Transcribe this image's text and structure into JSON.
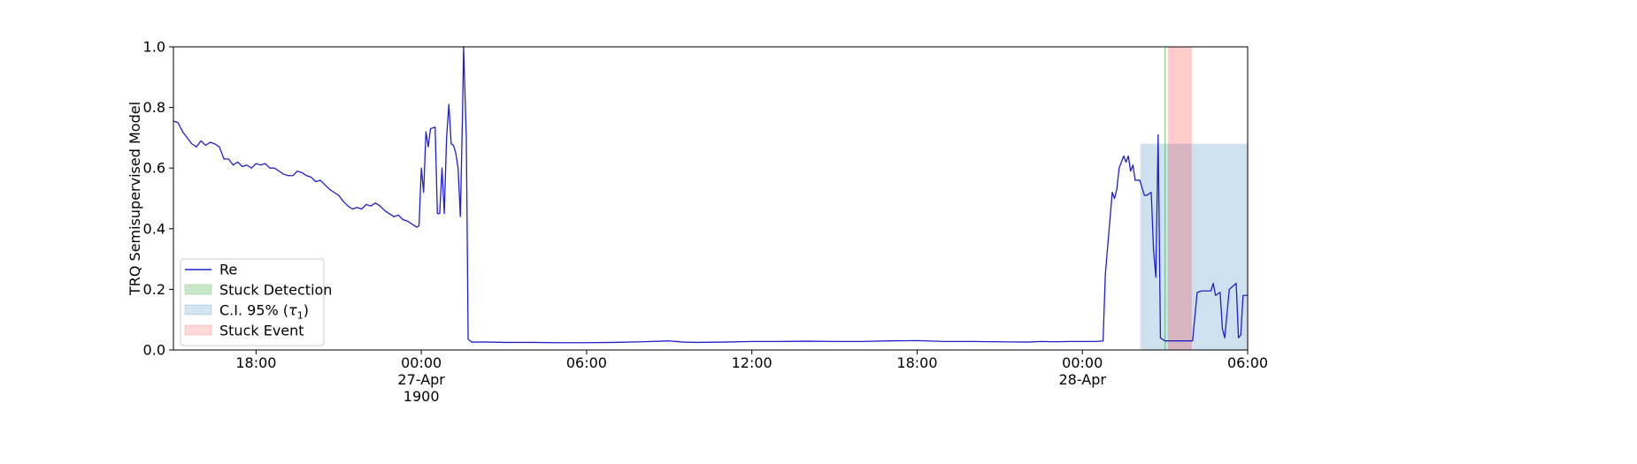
{
  "chart_data": {
    "type": "line",
    "title": "",
    "xlabel": "",
    "ylabel": "TRQ Semisupervised Model",
    "x_axis": {
      "start": "1900-04-26T15:00",
      "end": "1900-04-28T06:00",
      "ticks": [
        {
          "t": "1900-04-26T18:00",
          "label": "18:00",
          "sublabel": ""
        },
        {
          "t": "1900-04-27T00:00",
          "label": "00:00",
          "sublabel": "27-Apr",
          "sublabel2": "1900"
        },
        {
          "t": "1900-04-27T06:00",
          "label": "06:00",
          "sublabel": ""
        },
        {
          "t": "1900-04-27T12:00",
          "label": "12:00",
          "sublabel": ""
        },
        {
          "t": "1900-04-27T18:00",
          "label": "18:00",
          "sublabel": ""
        },
        {
          "t": "1900-04-28T00:00",
          "label": "00:00",
          "sublabel": "28-Apr"
        },
        {
          "t": "1900-04-28T06:00",
          "label": "06:00",
          "sublabel": ""
        }
      ]
    },
    "ylim": [
      0.0,
      1.0
    ],
    "y_ticks": [
      {
        "v": 0.0,
        "label": "0.0"
      },
      {
        "v": 0.2,
        "label": "0.2"
      },
      {
        "v": 0.4,
        "label": "0.4"
      },
      {
        "v": 0.6,
        "label": "0.6"
      },
      {
        "v": 0.8,
        "label": "0.8"
      },
      {
        "v": 1.0,
        "label": "1.0"
      }
    ],
    "grid": false,
    "legend_position": "lower-left",
    "legend": [
      {
        "label": "Re",
        "kind": "line",
        "color": "#2020c8"
      },
      {
        "label": "Stuck Detection",
        "kind": "patch",
        "color": "#2ca02c",
        "alpha": 0.25
      },
      {
        "label": "C.I. 95% (",
        "label_math": "τ",
        "label_sub": "1",
        "label_end": ")",
        "kind": "patch",
        "color": "#1f77b4",
        "alpha": 0.2
      },
      {
        "label": "Stuck Event",
        "kind": "patch",
        "color": "#ff0000",
        "alpha": 0.15
      }
    ],
    "regions": [
      {
        "name": "C.I. 95%",
        "x0": "1900-04-28T02:06",
        "x1": "1900-04-28T06:00",
        "y0": 0.0,
        "y1": 0.68,
        "color": "#1f77b4",
        "alpha": 0.22
      },
      {
        "name": "Stuck Event",
        "x0": "1900-04-28T03:06",
        "x1": "1900-04-28T03:58",
        "y0": 0.0,
        "y1": 1.0,
        "color": "#ff0000",
        "alpha": 0.2
      },
      {
        "name": "Stuck Detection",
        "x0": "1900-04-28T02:59",
        "x1": "1900-04-28T03:01",
        "y0": 0.0,
        "y1": 1.0,
        "color": "#2ca02c",
        "alpha": 0.6
      }
    ],
    "series": [
      {
        "name": "Re",
        "color": "#2020c8",
        "points": [
          [
            "1900-04-26T15:00",
            0.755
          ],
          [
            "1900-04-26T15:10",
            0.75
          ],
          [
            "1900-04-26T15:20",
            0.72
          ],
          [
            "1900-04-26T15:30",
            0.7
          ],
          [
            "1900-04-26T15:40",
            0.68
          ],
          [
            "1900-04-26T15:50",
            0.67
          ],
          [
            "1900-04-26T16:00",
            0.69
          ],
          [
            "1900-04-26T16:10",
            0.675
          ],
          [
            "1900-04-26T16:20",
            0.685
          ],
          [
            "1900-04-26T16:30",
            0.68
          ],
          [
            "1900-04-26T16:40",
            0.67
          ],
          [
            "1900-04-26T16:50",
            0.63
          ],
          [
            "1900-04-26T17:00",
            0.63
          ],
          [
            "1900-04-26T17:10",
            0.61
          ],
          [
            "1900-04-26T17:20",
            0.62
          ],
          [
            "1900-04-26T17:30",
            0.605
          ],
          [
            "1900-04-26T17:40",
            0.61
          ],
          [
            "1900-04-26T17:50",
            0.6
          ],
          [
            "1900-04-26T18:00",
            0.615
          ],
          [
            "1900-04-26T18:10",
            0.61
          ],
          [
            "1900-04-26T18:20",
            0.615
          ],
          [
            "1900-04-26T18:30",
            0.6
          ],
          [
            "1900-04-26T18:40",
            0.6
          ],
          [
            "1900-04-26T18:50",
            0.59
          ],
          [
            "1900-04-26T19:00",
            0.58
          ],
          [
            "1900-04-26T19:10",
            0.575
          ],
          [
            "1900-04-26T19:20",
            0.575
          ],
          [
            "1900-04-26T19:30",
            0.59
          ],
          [
            "1900-04-26T19:40",
            0.585
          ],
          [
            "1900-04-26T19:50",
            0.575
          ],
          [
            "1900-04-26T20:00",
            0.57
          ],
          [
            "1900-04-26T20:10",
            0.555
          ],
          [
            "1900-04-26T20:20",
            0.56
          ],
          [
            "1900-04-26T20:30",
            0.545
          ],
          [
            "1900-04-26T20:40",
            0.53
          ],
          [
            "1900-04-26T20:50",
            0.52
          ],
          [
            "1900-04-26T21:00",
            0.51
          ],
          [
            "1900-04-26T21:10",
            0.49
          ],
          [
            "1900-04-26T21:20",
            0.475
          ],
          [
            "1900-04-26T21:30",
            0.465
          ],
          [
            "1900-04-26T21:40",
            0.47
          ],
          [
            "1900-04-26T21:50",
            0.465
          ],
          [
            "1900-04-26T22:00",
            0.48
          ],
          [
            "1900-04-26T22:10",
            0.475
          ],
          [
            "1900-04-26T22:20",
            0.485
          ],
          [
            "1900-04-26T22:30",
            0.475
          ],
          [
            "1900-04-26T22:40",
            0.46
          ],
          [
            "1900-04-26T22:50",
            0.45
          ],
          [
            "1900-04-26T23:00",
            0.44
          ],
          [
            "1900-04-26T23:10",
            0.445
          ],
          [
            "1900-04-26T23:20",
            0.43
          ],
          [
            "1900-04-26T23:30",
            0.425
          ],
          [
            "1900-04-26T23:40",
            0.415
          ],
          [
            "1900-04-26T23:50",
            0.405
          ],
          [
            "1900-04-26T23:55",
            0.41
          ],
          [
            "1900-04-27T00:00",
            0.6
          ],
          [
            "1900-04-27T00:05",
            0.52
          ],
          [
            "1900-04-27T00:10",
            0.72
          ],
          [
            "1900-04-27T00:15",
            0.67
          ],
          [
            "1900-04-27T00:20",
            0.73
          ],
          [
            "1900-04-27T00:30",
            0.735
          ],
          [
            "1900-04-27T00:35",
            0.45
          ],
          [
            "1900-04-27T00:40",
            0.45
          ],
          [
            "1900-04-27T00:45",
            0.6
          ],
          [
            "1900-04-27T00:50",
            0.45
          ],
          [
            "1900-04-27T00:55",
            0.7
          ],
          [
            "1900-04-27T01:00",
            0.81
          ],
          [
            "1900-04-27T01:05",
            0.68
          ],
          [
            "1900-04-27T01:10",
            0.675
          ],
          [
            "1900-04-27T01:15",
            0.65
          ],
          [
            "1900-04-27T01:20",
            0.6
          ],
          [
            "1900-04-27T01:25",
            0.44
          ],
          [
            "1900-04-27T01:30",
            0.8
          ],
          [
            "1900-04-27T01:32",
            1.0
          ],
          [
            "1900-04-27T01:38",
            0.7
          ],
          [
            "1900-04-27T01:42",
            0.035
          ],
          [
            "1900-04-27T01:50",
            0.026
          ],
          [
            "1900-04-27T02:30",
            0.026
          ],
          [
            "1900-04-27T03:00",
            0.025
          ],
          [
            "1900-04-27T04:00",
            0.025
          ],
          [
            "1900-04-27T05:00",
            0.024
          ],
          [
            "1900-04-27T06:00",
            0.024
          ],
          [
            "1900-04-27T07:00",
            0.025
          ],
          [
            "1900-04-27T08:00",
            0.027
          ],
          [
            "1900-04-27T09:00",
            0.03
          ],
          [
            "1900-04-27T09:30",
            0.026
          ],
          [
            "1900-04-27T10:00",
            0.025
          ],
          [
            "1900-04-27T11:00",
            0.026
          ],
          [
            "1900-04-27T12:00",
            0.028
          ],
          [
            "1900-04-27T13:00",
            0.028
          ],
          [
            "1900-04-27T14:00",
            0.029
          ],
          [
            "1900-04-27T15:00",
            0.028
          ],
          [
            "1900-04-27T16:00",
            0.028
          ],
          [
            "1900-04-27T17:00",
            0.03
          ],
          [
            "1900-04-27T18:00",
            0.031
          ],
          [
            "1900-04-27T19:00",
            0.028
          ],
          [
            "1900-04-27T20:00",
            0.028
          ],
          [
            "1900-04-27T21:00",
            0.027
          ],
          [
            "1900-04-27T22:00",
            0.026
          ],
          [
            "1900-04-27T22:30",
            0.028
          ],
          [
            "1900-04-27T23:00",
            0.027
          ],
          [
            "1900-04-27T23:30",
            0.028
          ],
          [
            "1900-04-28T00:00",
            0.028
          ],
          [
            "1900-04-28T00:30",
            0.028
          ],
          [
            "1900-04-28T00:45",
            0.03
          ],
          [
            "1900-04-28T00:50",
            0.25
          ],
          [
            "1900-04-28T01:05",
            0.52
          ],
          [
            "1900-04-28T01:10",
            0.5
          ],
          [
            "1900-04-28T01:15",
            0.53
          ],
          [
            "1900-04-28T01:20",
            0.6
          ],
          [
            "1900-04-28T01:30",
            0.64
          ],
          [
            "1900-04-28T01:35",
            0.62
          ],
          [
            "1900-04-28T01:40",
            0.64
          ],
          [
            "1900-04-28T01:45",
            0.59
          ],
          [
            "1900-04-28T01:50",
            0.61
          ],
          [
            "1900-04-28T01:55",
            0.56
          ],
          [
            "1900-04-28T02:05",
            0.56
          ],
          [
            "1900-04-28T02:15",
            0.51
          ],
          [
            "1900-04-28T02:20",
            0.51
          ],
          [
            "1900-04-28T02:30",
            0.52
          ],
          [
            "1900-04-28T02:35",
            0.33
          ],
          [
            "1900-04-28T02:40",
            0.24
          ],
          [
            "1900-04-28T02:45",
            0.71
          ],
          [
            "1900-04-28T02:50",
            0.04
          ],
          [
            "1900-04-28T03:00",
            0.03
          ],
          [
            "1900-04-28T03:30",
            0.03
          ],
          [
            "1900-04-28T04:00",
            0.03
          ],
          [
            "1900-04-28T04:10",
            0.19
          ],
          [
            "1900-04-28T04:20",
            0.195
          ],
          [
            "1900-04-28T04:40",
            0.195
          ],
          [
            "1900-04-28T04:45",
            0.22
          ],
          [
            "1900-04-28T04:50",
            0.18
          ],
          [
            "1900-04-28T05:00",
            0.19
          ],
          [
            "1900-04-28T05:05",
            0.07
          ],
          [
            "1900-04-28T05:10",
            0.04
          ],
          [
            "1900-04-28T05:20",
            0.2
          ],
          [
            "1900-04-28T05:35",
            0.22
          ],
          [
            "1900-04-28T05:40",
            0.04
          ],
          [
            "1900-04-28T05:45",
            0.05
          ],
          [
            "1900-04-28T05:50",
            0.18
          ],
          [
            "1900-04-28T06:00",
            0.18
          ]
        ]
      }
    ]
  }
}
